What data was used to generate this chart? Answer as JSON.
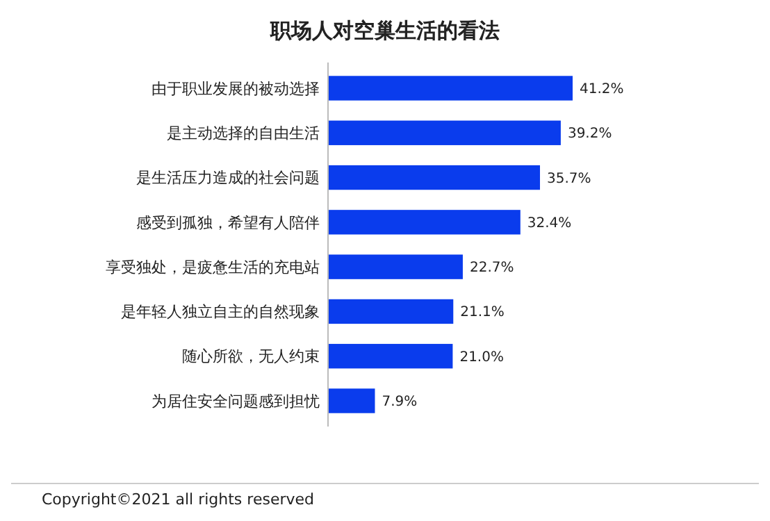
{
  "chart_data": {
    "type": "bar",
    "orientation": "horizontal",
    "title": "职场人对空巢生活的看法",
    "categories": [
      "由于职业发展的被动选择",
      "是主动选择的自由生活",
      "是生活压力造成的社会问题",
      "感受到孤独，希望有人陪伴",
      "享受独处，是疲惫生活的充电站",
      "是年轻人独立自主的自然现象",
      "随心所欲，无人约束",
      "为居住安全问题感到担忧"
    ],
    "values": [
      41.2,
      39.2,
      35.7,
      32.4,
      22.7,
      21.1,
      21.0,
      7.9
    ],
    "value_labels": [
      "41.2%",
      "39.2%",
      "35.7%",
      "32.4%",
      "22.7%",
      "21.1%",
      "21.0%",
      "7.9%"
    ],
    "color": "#0a3ced",
    "annotations": [
      "Copyright©2021 all rights reserved"
    ]
  }
}
